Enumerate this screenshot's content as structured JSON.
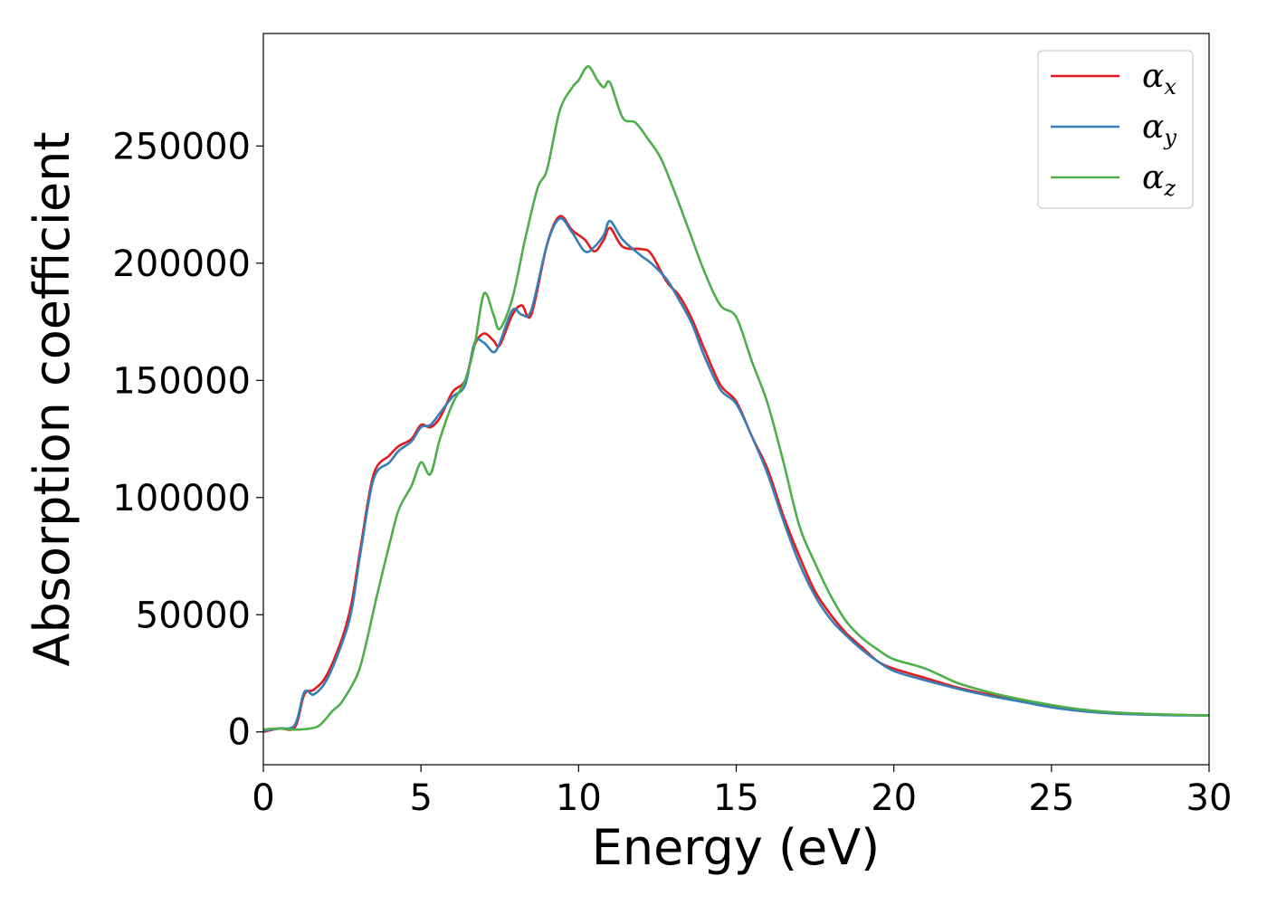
{
  "chart_data": {
    "type": "line",
    "title": "",
    "xlabel": "Energy (eV)",
    "ylabel": "Absorption coefficient",
    "xlim": [
      0,
      30
    ],
    "ylim": [
      -14000,
      298000
    ],
    "xticks": [
      0,
      5,
      10,
      15,
      20,
      25,
      30
    ],
    "yticks": [
      0,
      50000,
      100000,
      150000,
      200000,
      250000
    ],
    "grid": false,
    "legend_position": "top-right",
    "series": [
      {
        "name": "α_x",
        "base": "α",
        "sub": "x",
        "color": "#e41a1c",
        "points": [
          [
            0,
            0
          ],
          [
            0.5,
            1500
          ],
          [
            1.0,
            2000
          ],
          [
            1.3,
            16000
          ],
          [
            1.6,
            18000
          ],
          [
            2.0,
            24000
          ],
          [
            2.5,
            40000
          ],
          [
            2.8,
            55000
          ],
          [
            3.1,
            80000
          ],
          [
            3.5,
            110000
          ],
          [
            4.0,
            118000
          ],
          [
            4.3,
            122000
          ],
          [
            4.7,
            125000
          ],
          [
            5.0,
            131000
          ],
          [
            5.3,
            130000
          ],
          [
            5.6,
            134000
          ],
          [
            6.0,
            145000
          ],
          [
            6.4,
            150000
          ],
          [
            6.7,
            165000
          ],
          [
            7.0,
            170000
          ],
          [
            7.3,
            167000
          ],
          [
            7.5,
            165000
          ],
          [
            7.9,
            178000
          ],
          [
            8.2,
            182000
          ],
          [
            8.5,
            178000
          ],
          [
            9.0,
            208000
          ],
          [
            9.4,
            220000
          ],
          [
            9.8,
            214000
          ],
          [
            10.2,
            210000
          ],
          [
            10.5,
            205000
          ],
          [
            10.8,
            210000
          ],
          [
            11.0,
            215000
          ],
          [
            11.4,
            207000
          ],
          [
            12.0,
            206000
          ],
          [
            12.3,
            204000
          ],
          [
            12.8,
            192000
          ],
          [
            13.2,
            186000
          ],
          [
            13.6,
            176000
          ],
          [
            14.0,
            163000
          ],
          [
            14.5,
            148000
          ],
          [
            15.0,
            141000
          ],
          [
            15.5,
            126000
          ],
          [
            16.0,
            112000
          ],
          [
            16.5,
            92000
          ],
          [
            17.0,
            75000
          ],
          [
            17.5,
            60000
          ],
          [
            18.0,
            50000
          ],
          [
            18.5,
            42000
          ],
          [
            19.0,
            36000
          ],
          [
            19.5,
            30000
          ],
          [
            20.0,
            27000
          ],
          [
            21.0,
            23000
          ],
          [
            22.0,
            19000
          ],
          [
            23.0,
            16000
          ],
          [
            24.0,
            13500
          ],
          [
            25.0,
            11000
          ],
          [
            26.0,
            9000
          ],
          [
            27.0,
            8000
          ],
          [
            28.0,
            7500
          ],
          [
            29.0,
            7200
          ],
          [
            30.0,
            7000
          ]
        ]
      },
      {
        "name": "α_y",
        "base": "α",
        "sub": "y",
        "color": "#377eb8",
        "points": [
          [
            0,
            500
          ],
          [
            0.5,
            1500
          ],
          [
            1.0,
            3000
          ],
          [
            1.3,
            17000
          ],
          [
            1.6,
            16000
          ],
          [
            2.0,
            22000
          ],
          [
            2.5,
            38000
          ],
          [
            2.8,
            52000
          ],
          [
            3.1,
            78000
          ],
          [
            3.5,
            108000
          ],
          [
            4.0,
            115000
          ],
          [
            4.3,
            120000
          ],
          [
            4.7,
            124000
          ],
          [
            5.0,
            130000
          ],
          [
            5.3,
            131000
          ],
          [
            5.6,
            136000
          ],
          [
            6.0,
            143000
          ],
          [
            6.4,
            148000
          ],
          [
            6.7,
            166000
          ],
          [
            7.0,
            166000
          ],
          [
            7.3,
            162000
          ],
          [
            7.5,
            166000
          ],
          [
            7.9,
            180000
          ],
          [
            8.2,
            178000
          ],
          [
            8.5,
            180000
          ],
          [
            9.0,
            208000
          ],
          [
            9.4,
            219000
          ],
          [
            9.8,
            213000
          ],
          [
            10.2,
            205000
          ],
          [
            10.5,
            207000
          ],
          [
            10.8,
            212000
          ],
          [
            11.0,
            218000
          ],
          [
            11.4,
            210000
          ],
          [
            12.0,
            203000
          ],
          [
            12.3,
            200000
          ],
          [
            12.8,
            193000
          ],
          [
            13.2,
            184000
          ],
          [
            13.6,
            174000
          ],
          [
            14.0,
            160000
          ],
          [
            14.5,
            146000
          ],
          [
            15.0,
            140000
          ],
          [
            15.5,
            126000
          ],
          [
            16.0,
            110000
          ],
          [
            16.5,
            90000
          ],
          [
            17.0,
            72000
          ],
          [
            17.5,
            58000
          ],
          [
            18.0,
            48000
          ],
          [
            18.5,
            41000
          ],
          [
            19.0,
            35000
          ],
          [
            19.5,
            30000
          ],
          [
            20.0,
            26000
          ],
          [
            21.0,
            22000
          ],
          [
            22.0,
            18500
          ],
          [
            23.0,
            15500
          ],
          [
            24.0,
            13000
          ],
          [
            25.0,
            10500
          ],
          [
            26.0,
            8800
          ],
          [
            27.0,
            7800
          ],
          [
            28.0,
            7400
          ],
          [
            29.0,
            7100
          ],
          [
            30.0,
            7000
          ]
        ]
      },
      {
        "name": "α_z",
        "base": "α",
        "sub": "z",
        "color": "#4daf4a",
        "points": [
          [
            0,
            1000
          ],
          [
            0.5,
            1500
          ],
          [
            1.0,
            1000
          ],
          [
            1.5,
            1500
          ],
          [
            1.8,
            3000
          ],
          [
            2.2,
            9000
          ],
          [
            2.5,
            13000
          ],
          [
            3.0,
            25000
          ],
          [
            3.3,
            40000
          ],
          [
            3.6,
            58000
          ],
          [
            4.0,
            80000
          ],
          [
            4.3,
            95000
          ],
          [
            4.7,
            105000
          ],
          [
            5.0,
            115000
          ],
          [
            5.3,
            110000
          ],
          [
            5.6,
            125000
          ],
          [
            6.0,
            140000
          ],
          [
            6.4,
            150000
          ],
          [
            6.7,
            165000
          ],
          [
            7.0,
            187000
          ],
          [
            7.3,
            178000
          ],
          [
            7.5,
            172000
          ],
          [
            7.9,
            185000
          ],
          [
            8.3,
            210000
          ],
          [
            8.7,
            232000
          ],
          [
            9.0,
            240000
          ],
          [
            9.4,
            265000
          ],
          [
            9.8,
            275000
          ],
          [
            10.0,
            278000
          ],
          [
            10.3,
            284000
          ],
          [
            10.6,
            278000
          ],
          [
            10.8,
            275000
          ],
          [
            11.0,
            277000
          ],
          [
            11.4,
            262000
          ],
          [
            11.8,
            260000
          ],
          [
            12.2,
            253000
          ],
          [
            12.6,
            245000
          ],
          [
            13.0,
            232000
          ],
          [
            13.5,
            214000
          ],
          [
            14.0,
            196000
          ],
          [
            14.5,
            182000
          ],
          [
            15.0,
            177000
          ],
          [
            15.5,
            158000
          ],
          [
            16.0,
            140000
          ],
          [
            16.5,
            115000
          ],
          [
            17.0,
            88000
          ],
          [
            17.5,
            72000
          ],
          [
            18.0,
            58000
          ],
          [
            18.5,
            47000
          ],
          [
            19.0,
            40000
          ],
          [
            19.5,
            35000
          ],
          [
            20.0,
            31000
          ],
          [
            21.0,
            27000
          ],
          [
            22.0,
            21000
          ],
          [
            23.0,
            17000
          ],
          [
            24.0,
            14000
          ],
          [
            25.0,
            11500
          ],
          [
            26.0,
            9500
          ],
          [
            27.0,
            8300
          ],
          [
            28.0,
            7700
          ],
          [
            29.0,
            7300
          ],
          [
            30.0,
            7000
          ]
        ]
      }
    ]
  }
}
